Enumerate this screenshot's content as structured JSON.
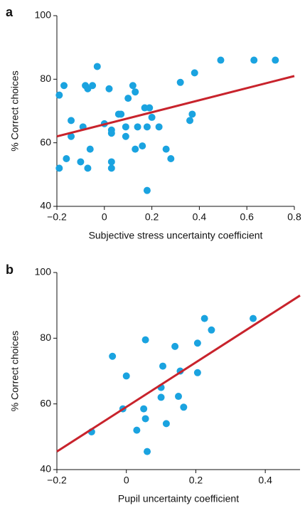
{
  "chart_data": [
    {
      "type": "scatter",
      "panel_label": "a",
      "xlabel": "Subjective stress uncertainty coefficient",
      "ylabel": "% Correct choices",
      "color": "#1aa3e0",
      "x": [
        -0.19,
        -0.17,
        -0.19,
        -0.16,
        -0.14,
        -0.14,
        -0.1,
        -0.09,
        -0.08,
        -0.07,
        -0.07,
        -0.06,
        -0.05,
        -0.03,
        0.0,
        0.02,
        0.03,
        0.03,
        0.03,
        0.03,
        0.06,
        0.07,
        0.09,
        0.09,
        0.1,
        0.12,
        0.13,
        0.13,
        0.14,
        0.16,
        0.17,
        0.18,
        0.18,
        0.19,
        0.2,
        0.23,
        0.26,
        0.28,
        0.32,
        0.36,
        0.37,
        0.38,
        0.49,
        0.63,
        0.72
      ],
      "y": [
        75,
        78,
        52,
        55,
        67,
        62,
        54,
        65,
        78,
        77,
        52,
        58,
        78,
        84,
        66,
        77,
        54,
        52,
        63,
        64,
        69,
        69,
        62,
        65,
        74,
        78,
        76,
        58,
        65,
        59,
        71,
        45,
        65,
        71,
        68,
        65,
        58,
        55,
        79,
        67,
        69,
        82,
        86,
        86,
        86
      ],
      "fit": {
        "x": [
          -0.2,
          0.8
        ],
        "y": [
          62,
          81
        ],
        "color": "#c8232c"
      },
      "xlim": [
        -0.2,
        0.8
      ],
      "ylim": [
        40,
        100
      ],
      "xticks": [
        {
          "value": -0.2,
          "label": "−0.2"
        },
        0,
        0.2,
        0.4,
        0.6,
        0.8
      ],
      "yticks": [
        40,
        60,
        80,
        100
      ]
    },
    {
      "type": "scatter",
      "panel_label": "b",
      "xlabel": "Pupil uncertainty coefficient",
      "ylabel": "% Correct choices",
      "color": "#1aa3e0",
      "x": [
        -0.1,
        -0.04,
        0,
        -0.01,
        0.03,
        0.05,
        0.055,
        0.055,
        0.06,
        0.1,
        0.1,
        0.105,
        0.115,
        0.14,
        0.15,
        0.155,
        0.165,
        0.205,
        0.205,
        0.225,
        0.245,
        0.365
      ],
      "y": [
        51.5,
        74.5,
        68.5,
        58.5,
        52,
        58.5,
        79.5,
        55.5,
        45.5,
        65,
        62,
        71.5,
        54,
        77.5,
        62.3,
        70,
        59,
        78.5,
        69.5,
        86,
        82.5,
        86
      ],
      "fit": {
        "x": [
          -0.2,
          0.5
        ],
        "y": [
          45.5,
          93
        ],
        "color": "#c8232c"
      },
      "xlim": [
        -0.2,
        0.5
      ],
      "ylim": [
        40,
        100
      ],
      "xticks": [
        {
          "value": -0.2,
          "label": "−0.2"
        },
        0,
        0.2,
        0.4
      ],
      "yticks": [
        40,
        60,
        80,
        100
      ]
    }
  ]
}
